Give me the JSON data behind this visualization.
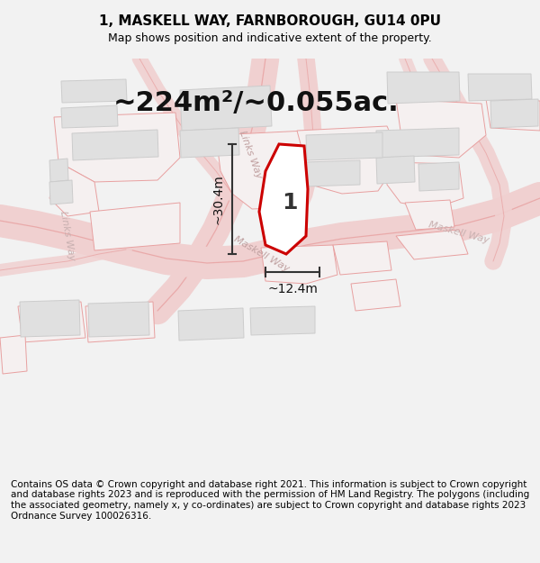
{
  "title": "1, MASKELL WAY, FARNBOROUGH, GU14 0PU",
  "subtitle": "Map shows position and indicative extent of the property.",
  "area_text": "~224m²/~0.055ac.",
  "dim_width": "~12.4m",
  "dim_height": "~30.4m",
  "plot_label": "1",
  "footer": "Contains OS data © Crown copyright and database right 2021. This information is subject to Crown copyright and database rights 2023 and is reproduced with the permission of HM Land Registry. The polygons (including the associated geometry, namely x, y co-ordinates) are subject to Crown copyright and database rights 2023 Ordnance Survey 100026316.",
  "bg_color": "#f2f2f2",
  "map_bg": "#f8f8f8",
  "road_color": "#e8a0a0",
  "road_fill": "#f0d0d0",
  "building_color": "#e0e0e0",
  "building_edge": "#cccccc",
  "plot_line_color": "#cc0000",
  "dim_line_color": "#333333",
  "title_fontsize": 11,
  "subtitle_fontsize": 9,
  "area_fontsize": 22,
  "dim_fontsize": 10,
  "plot_label_fontsize": 18,
  "footer_fontsize": 7.5,
  "street_label_color": "#c0a0a0",
  "street_label_fontsize": 8,
  "parcel_line_color": "#e8a0a0",
  "parcel_fill": "#f5f0f0"
}
